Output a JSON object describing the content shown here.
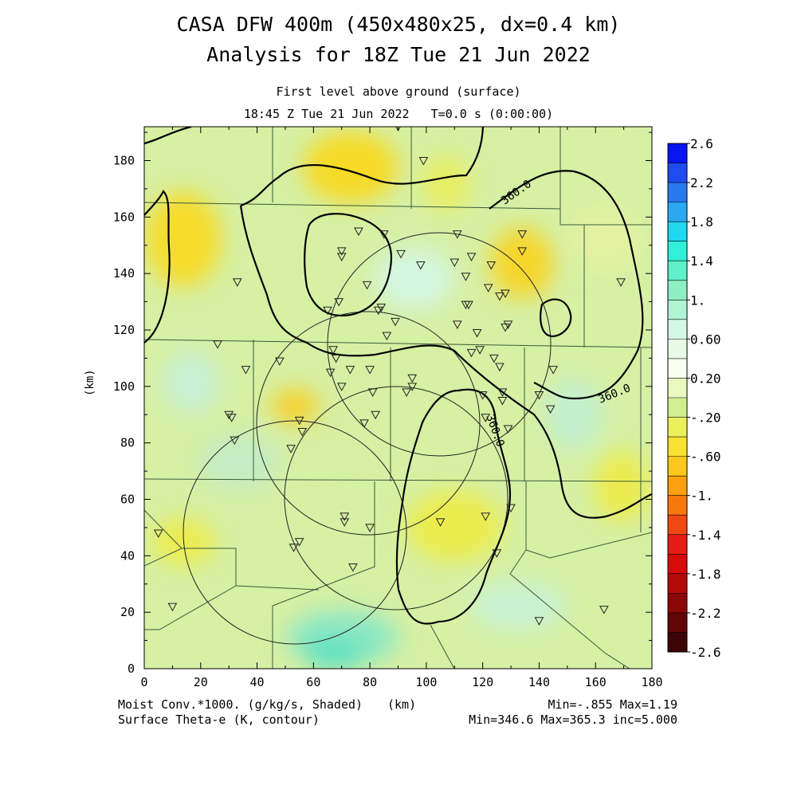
{
  "header": {
    "title_line1": "CASA DFW 400m (450x480x25, dx=0.4 km)",
    "title_line2": "Analysis for 18Z Tue 21 Jun 2022",
    "subtitle_level": "First level above ground (surface)",
    "subtitle_time": "18:45 Z Tue 21 Jun 2022   T=0.0 s (0:00:00)"
  },
  "axes": {
    "x_unit": "(km)",
    "y_unit": "(km)",
    "x_ticks": [
      "0",
      "20",
      "40",
      "60",
      "80",
      "100",
      "120",
      "140",
      "160",
      "180"
    ],
    "y_ticks": [
      "0",
      "20",
      "40",
      "60",
      "80",
      "100",
      "120",
      "140",
      "160",
      "180"
    ],
    "x_range": [
      0,
      180
    ],
    "y_range": [
      0,
      192
    ]
  },
  "colorbar": {
    "labels": [
      "2.6",
      "2.2",
      "1.8",
      "1.4",
      "1.",
      "0.60",
      "0.20",
      "-.20",
      "-.60",
      "-1.",
      "-1.4",
      "-1.8",
      "-2.2",
      "-2.6"
    ],
    "colors": [
      "#0a14f0",
      "#1e4cf0",
      "#2a78f0",
      "#2aa8f0",
      "#1ed8f0",
      "#30f0d8",
      "#5ef0c8",
      "#8cf0c4",
      "#b0f4d4",
      "#d4f8e4",
      "#e8fae6",
      "#f8fff0",
      "#e8f8c0",
      "#d0f090",
      "#ecf05a",
      "#f8e230",
      "#fcc81c",
      "#fca010",
      "#f87810",
      "#f04814",
      "#e81c14",
      "#d80a0a",
      "#b40a0a",
      "#8c0808",
      "#600606",
      "#3c0404"
    ]
  },
  "contours": {
    "label_360_a": "360.0",
    "label_360_b": "360.0",
    "label_360_c": "360.0"
  },
  "footer": {
    "left_line1": "Moist Conv.*1000. (g/kg/s, Shaded)",
    "left_line2": "Surface Theta-e (K, contour)",
    "mid_unit": "(km)",
    "right_line1": "Min=-.855 Max=1.19",
    "right_line2": "Min=346.6 Max=365.3 inc=5.000"
  },
  "stations": [
    [
      5,
      48
    ],
    [
      10,
      22
    ],
    [
      26,
      115
    ],
    [
      30,
      90
    ],
    [
      31,
      89
    ],
    [
      32,
      81
    ],
    [
      33,
      137
    ],
    [
      36,
      106
    ],
    [
      48,
      109
    ],
    [
      52,
      78
    ],
    [
      53,
      43
    ],
    [
      55,
      45
    ],
    [
      55,
      88
    ],
    [
      56,
      84
    ],
    [
      65,
      127
    ],
    [
      66,
      105
    ],
    [
      67,
      113
    ],
    [
      68,
      110
    ],
    [
      69,
      130
    ],
    [
      70,
      146
    ],
    [
      70,
      148
    ],
    [
      70,
      100
    ],
    [
      71,
      52
    ],
    [
      71,
      54
    ],
    [
      73,
      106
    ],
    [
      74,
      36
    ],
    [
      76,
      155
    ],
    [
      78,
      87
    ],
    [
      79,
      136
    ],
    [
      80,
      50
    ],
    [
      80,
      106
    ],
    [
      81,
      98
    ],
    [
      82,
      90
    ],
    [
      83,
      127
    ],
    [
      84,
      128
    ],
    [
      85,
      154
    ],
    [
      86,
      118
    ],
    [
      89,
      123
    ],
    [
      90,
      192
    ],
    [
      91,
      147
    ],
    [
      93,
      98
    ],
    [
      95,
      103
    ],
    [
      95,
      100
    ],
    [
      98,
      143
    ],
    [
      99,
      180
    ],
    [
      105,
      52
    ],
    [
      110,
      144
    ],
    [
      111,
      154
    ],
    [
      111,
      122
    ],
    [
      114,
      139
    ],
    [
      114,
      129
    ],
    [
      115,
      129
    ],
    [
      116,
      112
    ],
    [
      116,
      146
    ],
    [
      118,
      119
    ],
    [
      119,
      113
    ],
    [
      120,
      97
    ],
    [
      121,
      54
    ],
    [
      121,
      89
    ],
    [
      122,
      135
    ],
    [
      123,
      143
    ],
    [
      124,
      110
    ],
    [
      125,
      41
    ],
    [
      126,
      107
    ],
    [
      126,
      132
    ],
    [
      127,
      98
    ],
    [
      127,
      95
    ],
    [
      128,
      133
    ],
    [
      128,
      121
    ],
    [
      129,
      85
    ],
    [
      129,
      122
    ],
    [
      130,
      57
    ],
    [
      134,
      148
    ],
    [
      134,
      154
    ],
    [
      140,
      17
    ],
    [
      140,
      97
    ],
    [
      144,
      92
    ],
    [
      145,
      106
    ],
    [
      163,
      21
    ],
    [
      169,
      137
    ]
  ]
}
